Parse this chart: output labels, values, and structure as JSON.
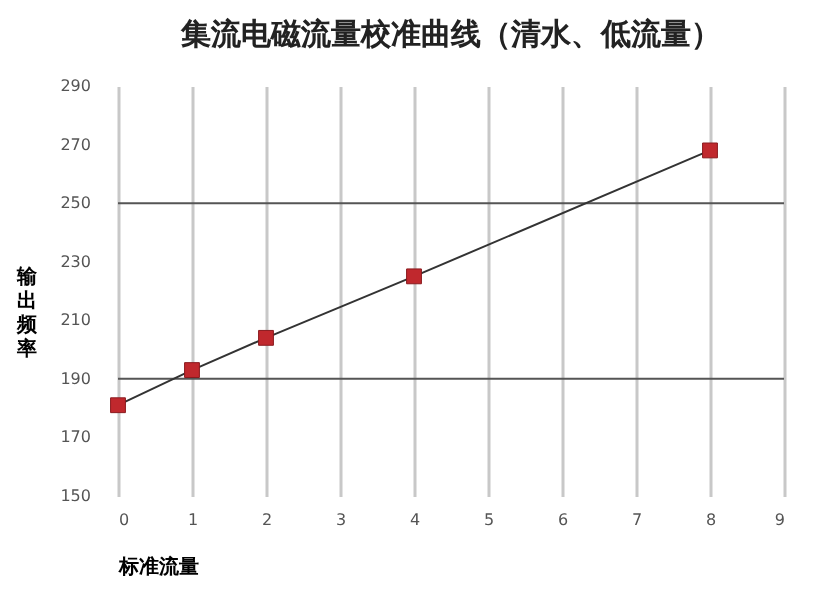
{
  "chart_data": {
    "type": "line",
    "title": "集流电磁流量校准曲线（清水、低流量）",
    "xlabel": "标准流量",
    "ylabel": "输出频率",
    "x": [
      0,
      1,
      2,
      4,
      8
    ],
    "series": [
      {
        "color": "#c0282d",
        "values": [
          181,
          193,
          204,
          225,
          268
        ]
      }
    ],
    "marker": "square",
    "line_style": "solid",
    "xlim": [
      0,
      9
    ],
    "xticks": [
      0,
      1,
      2,
      3,
      4,
      5,
      6,
      7,
      8,
      9
    ],
    "ylim": [
      150,
      290
    ],
    "yticks": [
      150,
      170,
      190,
      210,
      230,
      250,
      270,
      290
    ],
    "grid": "x",
    "ref_lines": [
      {
        "axis": "y",
        "value": 190,
        "color": "#555555"
      },
      {
        "axis": "y",
        "value": 250,
        "color": "#555555"
      }
    ]
  }
}
